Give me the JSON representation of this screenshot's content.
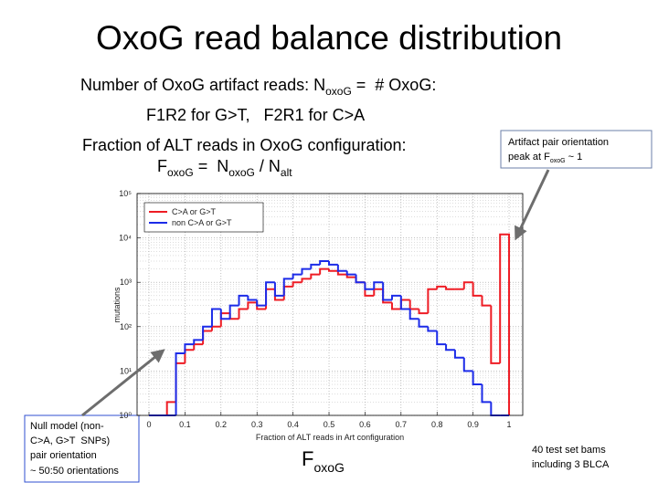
{
  "slide": {
    "title": "OxoG read balance distribution",
    "line1": [
      "Number of OxoG artifact reads: N",
      "oxoG",
      " =  # OxoG:"
    ],
    "line2": "F1R2 for G>T,   F2R1 for C>A",
    "line3": "Fraction of ALT reads in OxoG configuration:",
    "line4": [
      "F",
      "oxoG",
      " =  N",
      "oxoG",
      " / N",
      "alt"
    ],
    "callout_right": [
      "Artifact pair orientation",
      "peak at F",
      "oxoG",
      " ~ 1"
    ],
    "callout_left": [
      "Null model (non-",
      "C>A, G>T  SNPs)",
      "pair orientation",
      "~ 50:50 orientations"
    ],
    "bottom_label": [
      "F",
      "oxoG"
    ],
    "note": [
      "40 test set bams",
      "including 3 BLCA"
    ]
  },
  "chart_data": {
    "type": "histogram",
    "xlabel": "Fraction of ALT reads in Art configuration",
    "ylabel": "mutations",
    "bins": [
      0,
      0.025,
      0.05,
      0.075,
      0.1,
      0.125,
      0.15,
      0.175,
      0.2,
      0.225,
      0.25,
      0.275,
      0.3,
      0.325,
      0.35,
      0.375,
      0.4,
      0.425,
      0.45,
      0.475,
      0.5,
      0.525,
      0.55,
      0.575,
      0.6,
      0.625,
      0.65,
      0.675,
      0.7,
      0.725,
      0.75,
      0.775,
      0.8,
      0.825,
      0.85,
      0.875,
      0.9,
      0.925,
      0.95,
      0.975,
      1
    ],
    "series": [
      {
        "name": "C>A or G>T",
        "color": "#ee1c24",
        "values": [
          0,
          0,
          2,
          15,
          30,
          40,
          80,
          100,
          200,
          150,
          250,
          350,
          250,
          700,
          400,
          800,
          1000,
          1200,
          1500,
          2000,
          1800,
          1500,
          1300,
          1000,
          500,
          700,
          350,
          250,
          400,
          250,
          200,
          700,
          800,
          700,
          700,
          1000,
          500,
          300,
          15,
          12000
        ]
      },
      {
        "name": "non C>A or G>T",
        "color": "#1c2be8",
        "values": [
          0,
          0,
          0,
          25,
          40,
          50,
          100,
          250,
          150,
          300,
          500,
          400,
          300,
          1000,
          500,
          1200,
          1500,
          2000,
          2500,
          3000,
          2500,
          1800,
          1500,
          1000,
          700,
          1000,
          400,
          500,
          250,
          150,
          100,
          80,
          40,
          30,
          20,
          10,
          5,
          2,
          0,
          0
        ]
      }
    ],
    "xlim": [
      -0.033,
      1.038
    ],
    "xticks": [
      0,
      0.1,
      0.2,
      0.3,
      0.4,
      0.5,
      0.6,
      0.7,
      0.8,
      0.9,
      1
    ],
    "ylim": [
      1,
      100000
    ],
    "log_y": true,
    "yticks": [
      {
        "value": 1,
        "label": "10⁰"
      },
      {
        "value": 10,
        "label": "10¹"
      },
      {
        "value": 100,
        "label": "10²"
      },
      {
        "value": 1000,
        "label": "10³"
      },
      {
        "value": 10000,
        "label": "10⁴"
      },
      {
        "value": 100000,
        "label": "10⁵"
      }
    ],
    "grid": true,
    "legend": "upper left"
  }
}
